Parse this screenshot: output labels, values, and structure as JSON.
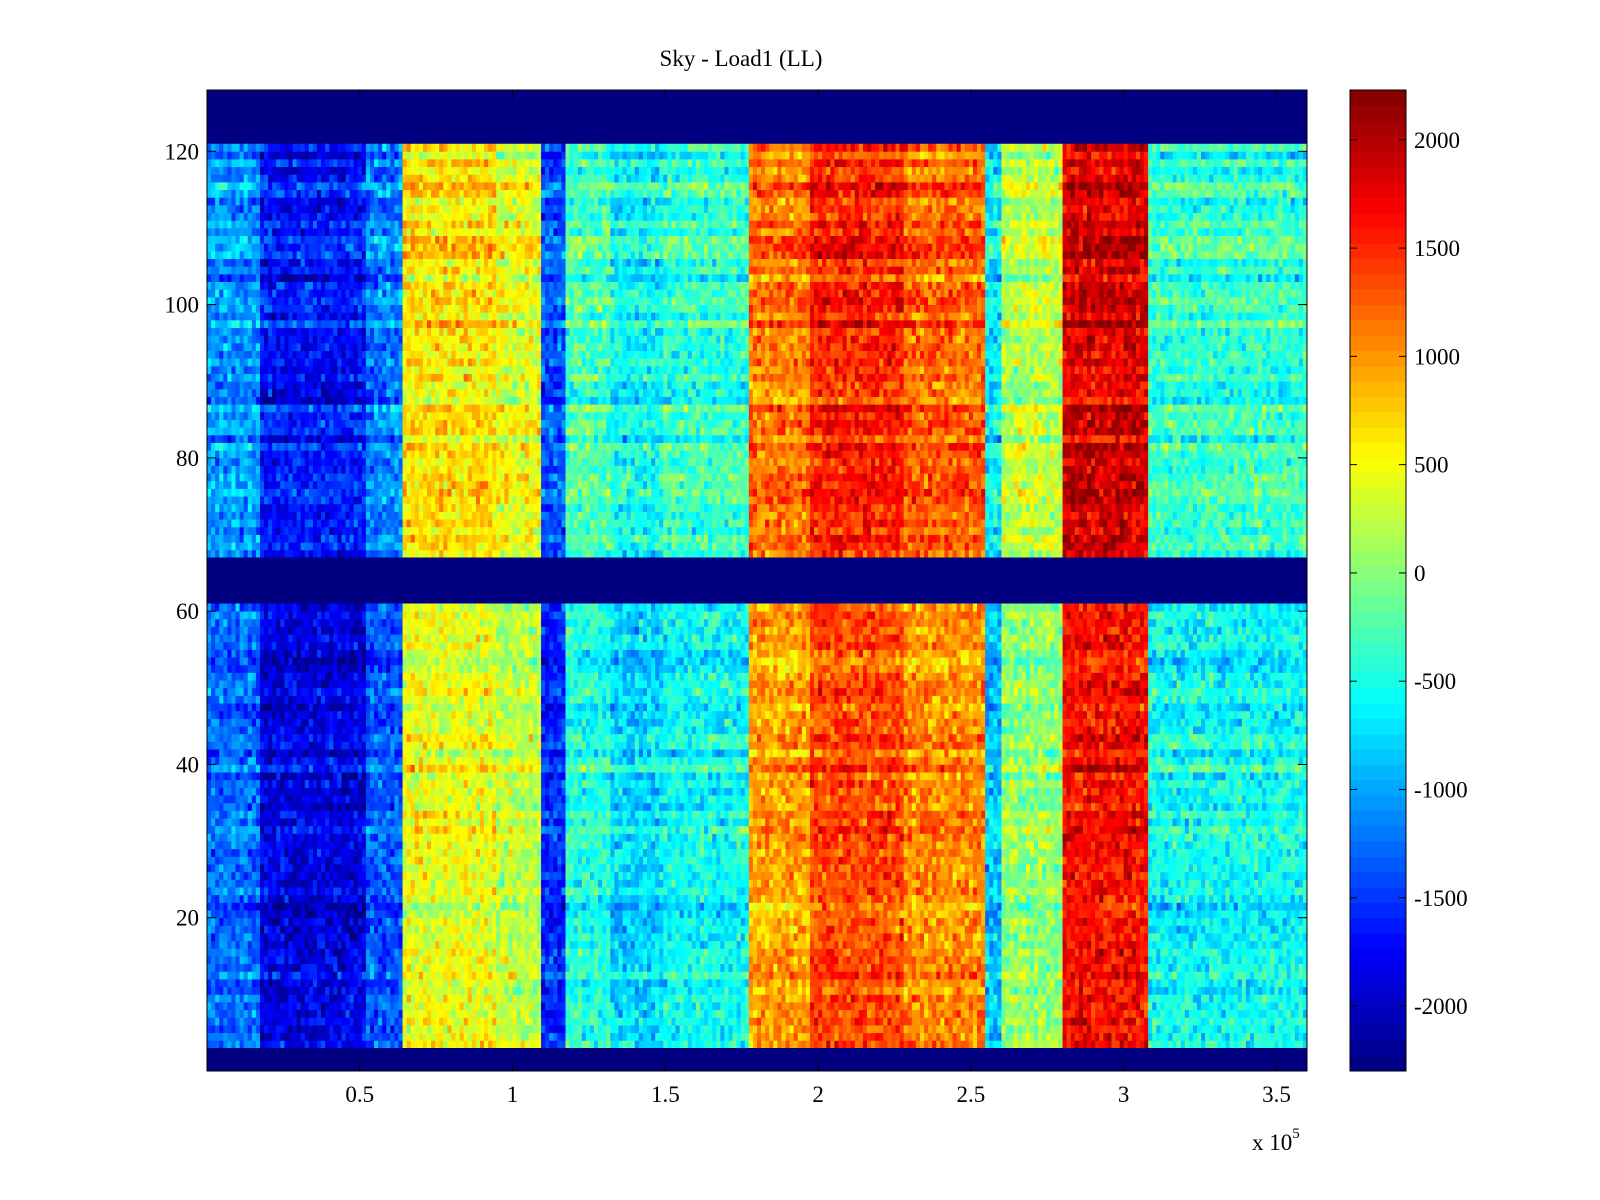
{
  "chart_data": {
    "type": "heatmap",
    "title": "Sky - Load1 (LL)",
    "xlabel": "",
    "ylabel": "",
    "x_multiplier_label": "x 10",
    "x_multiplier_exponent": "5",
    "xlim": [
      0,
      3.6
    ],
    "ylim": [
      0,
      128
    ],
    "xticks": [
      0.5,
      1,
      1.5,
      2,
      2.5,
      3,
      3.5
    ],
    "xtick_labels": [
      "0.5",
      "1",
      "1.5",
      "2",
      "2.5",
      "3",
      "3.5"
    ],
    "yticks": [
      20,
      40,
      60,
      80,
      100,
      120
    ],
    "ytick_labels": [
      "20",
      "40",
      "60",
      "80",
      "100",
      "120"
    ],
    "colorbar": {
      "colormap": "jet",
      "clim": [
        -2300,
        2230
      ],
      "ticks": [
        -2000,
        -1500,
        -1000,
        -500,
        0,
        500,
        1000,
        1500,
        2000
      ],
      "tick_labels": [
        "-2000",
        "-1500",
        "-1000",
        "-500",
        "0",
        "500",
        "1000",
        "1500",
        "2000"
      ]
    },
    "masked_row_bands": [
      {
        "y_from": 0,
        "y_to": 3,
        "value": -2300
      },
      {
        "y_from": 61,
        "y_to": 67,
        "value": -2300
      },
      {
        "y_from": 121,
        "y_to": 128,
        "value": -2300
      }
    ],
    "column_bands": [
      {
        "x_from": 0.0,
        "x_to": 0.17,
        "value": -1200
      },
      {
        "x_from": 0.17,
        "x_to": 0.52,
        "value": -1800
      },
      {
        "x_from": 0.52,
        "x_to": 0.64,
        "value": -1300
      },
      {
        "x_from": 0.64,
        "x_to": 0.95,
        "value": 500
      },
      {
        "x_from": 0.95,
        "x_to": 1.1,
        "value": 300
      },
      {
        "x_from": 1.1,
        "x_to": 1.18,
        "value": -1500
      },
      {
        "x_from": 1.18,
        "x_to": 1.32,
        "value": -400
      },
      {
        "x_from": 1.32,
        "x_to": 1.5,
        "value": -700
      },
      {
        "x_from": 1.5,
        "x_to": 1.78,
        "value": -500
      },
      {
        "x_from": 1.78,
        "x_to": 1.98,
        "value": 1000
      },
      {
        "x_from": 1.98,
        "x_to": 2.28,
        "value": 1400
      },
      {
        "x_from": 2.28,
        "x_to": 2.55,
        "value": 1100
      },
      {
        "x_from": 2.55,
        "x_to": 2.6,
        "value": -800
      },
      {
        "x_from": 2.6,
        "x_to": 2.8,
        "value": 100
      },
      {
        "x_from": 2.8,
        "x_to": 3.08,
        "value": 1700
      },
      {
        "x_from": 3.08,
        "x_to": 3.6,
        "value": -500
      }
    ],
    "notes_row_trend": "upper block (y 67-121) slightly warmer than lower block (y 3-61); high-noise per-cell variation"
  }
}
